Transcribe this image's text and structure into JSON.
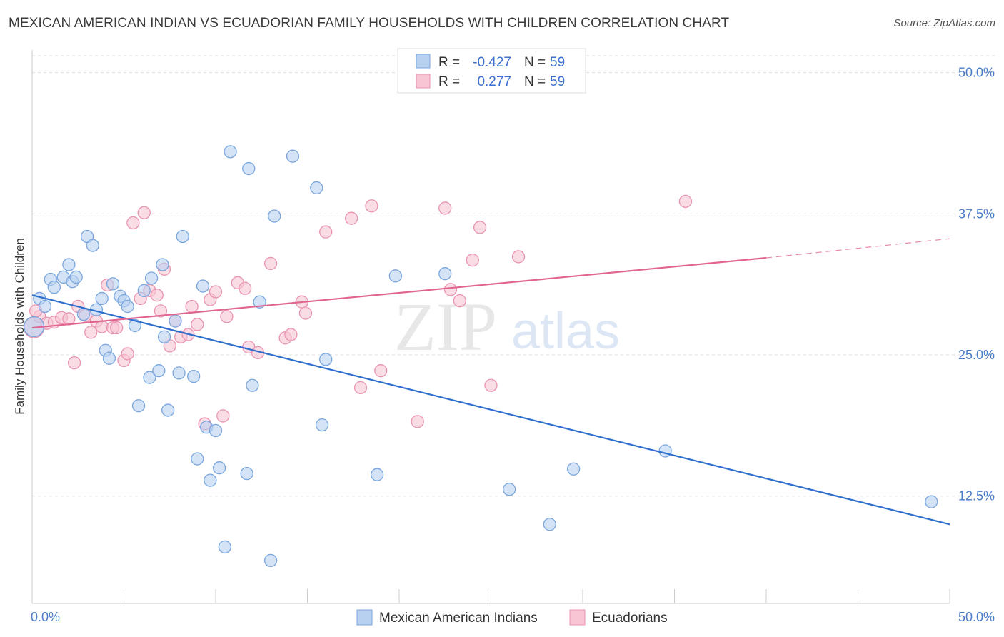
{
  "title": "MEXICAN AMERICAN INDIAN VS ECUADORIAN FAMILY HOUSEHOLDS WITH CHILDREN CORRELATION CHART",
  "source": "Source: ZipAtlas.com",
  "watermark": {
    "zip": "ZIP",
    "atlas": "atlas"
  },
  "colors": {
    "blue_fill": "#b8d1f0",
    "blue_stroke": "#7aa6de",
    "blue_line": "#2f6fce",
    "pink_fill": "#f7c5d4",
    "pink_stroke": "#e994b0",
    "pink_line": "#e0668f",
    "tick_label": "#4a7cc7",
    "grid": "#dddddd"
  },
  "legend": {
    "rows": [
      {
        "r_label": "R =",
        "r_value": "-0.427",
        "n_label": "N =",
        "n_value": "59",
        "series": "blue"
      },
      {
        "r_label": "R =",
        "r_value": "0.277",
        "n_label": "N =",
        "n_value": "59",
        "series": "pink"
      }
    ]
  },
  "bottom_legend": [
    {
      "label": "Mexican American Indians",
      "series": "blue"
    },
    {
      "label": "Ecuadorians",
      "series": "pink"
    }
  ],
  "chart_data": {
    "type": "scatter",
    "title": "MEXICAN AMERICAN INDIAN VS ECUADORIAN FAMILY HOUSEHOLDS WITH CHILDREN CORRELATION CHART",
    "xlabel": "",
    "ylabel": "Family Households with Children",
    "xlim": [
      0,
      50
    ],
    "ylim": [
      3,
      52
    ],
    "x_tick_labels": [
      {
        "value": 0,
        "label": "0.0%"
      },
      {
        "value": 50,
        "label": "50.0%"
      }
    ],
    "y_tick_labels": [
      {
        "value": 12.5,
        "label": "12.5%"
      },
      {
        "value": 25.0,
        "label": "25.0%"
      },
      {
        "value": 37.5,
        "label": "37.5%"
      },
      {
        "value": 50.0,
        "label": "50.0%"
      }
    ],
    "gridlines_y": [
      12.5,
      25.0,
      37.5,
      50.0
    ],
    "legend_placement": "top-center",
    "series": [
      {
        "name": "Mexican American Indians",
        "color": "blue",
        "trend": {
          "x": [
            0,
            50
          ],
          "y": [
            30.3,
            10.0
          ],
          "dashed_from": null
        },
        "points": [
          [
            0.1,
            27.5
          ],
          [
            0.4,
            30.0
          ],
          [
            0.7,
            29.3
          ],
          [
            1.0,
            31.7
          ],
          [
            1.2,
            31.0
          ],
          [
            1.7,
            31.9
          ],
          [
            2.0,
            33.0
          ],
          [
            2.2,
            31.5
          ],
          [
            2.4,
            31.9
          ],
          [
            2.8,
            28.6
          ],
          [
            3.0,
            35.5
          ],
          [
            3.3,
            34.7
          ],
          [
            3.5,
            29.0
          ],
          [
            3.8,
            30.0
          ],
          [
            4.0,
            25.4
          ],
          [
            4.2,
            24.7
          ],
          [
            4.4,
            31.3
          ],
          [
            4.8,
            30.2
          ],
          [
            5.0,
            29.8
          ],
          [
            5.2,
            29.3
          ],
          [
            5.6,
            27.6
          ],
          [
            5.8,
            20.5
          ],
          [
            6.1,
            30.7
          ],
          [
            6.4,
            23.0
          ],
          [
            6.5,
            31.8
          ],
          [
            6.9,
            23.6
          ],
          [
            7.1,
            33.0
          ],
          [
            7.2,
            26.6
          ],
          [
            7.4,
            20.1
          ],
          [
            7.8,
            28.0
          ],
          [
            8.0,
            23.4
          ],
          [
            8.2,
            35.5
          ],
          [
            8.8,
            23.1
          ],
          [
            9.0,
            15.8
          ],
          [
            9.3,
            31.1
          ],
          [
            9.5,
            18.6
          ],
          [
            9.7,
            13.9
          ],
          [
            10.0,
            18.3
          ],
          [
            10.2,
            15.0
          ],
          [
            10.5,
            8.0
          ],
          [
            10.8,
            43.0
          ],
          [
            11.7,
            14.5
          ],
          [
            11.8,
            41.5
          ],
          [
            12.0,
            22.3
          ],
          [
            12.4,
            29.7
          ],
          [
            13.0,
            6.8
          ],
          [
            13.2,
            37.3
          ],
          [
            14.2,
            42.6
          ],
          [
            15.5,
            39.8
          ],
          [
            15.8,
            18.8
          ],
          [
            16.0,
            24.6
          ],
          [
            18.8,
            14.4
          ],
          [
            19.8,
            32.0
          ],
          [
            22.5,
            32.2
          ],
          [
            26.0,
            13.1
          ],
          [
            28.2,
            10.0
          ],
          [
            29.5,
            14.9
          ],
          [
            34.5,
            16.5
          ],
          [
            49.0,
            12.0
          ]
        ]
      },
      {
        "name": "Ecuadorians",
        "color": "pink",
        "trend": {
          "x": [
            0,
            40,
            50
          ],
          "y": [
            27.4,
            33.6,
            35.3
          ],
          "dashed_from": 40
        },
        "points": [
          [
            0.1,
            27.4
          ],
          [
            0.4,
            28.4
          ],
          [
            0.8,
            27.8
          ],
          [
            1.2,
            27.9
          ],
          [
            1.6,
            28.3
          ],
          [
            2.0,
            28.2
          ],
          [
            2.3,
            24.3
          ],
          [
            2.5,
            29.3
          ],
          [
            2.9,
            28.5
          ],
          [
            3.2,
            27.0
          ],
          [
            3.5,
            28.0
          ],
          [
            3.8,
            27.5
          ],
          [
            4.1,
            31.2
          ],
          [
            4.4,
            27.4
          ],
          [
            4.6,
            27.4
          ],
          [
            5.0,
            24.5
          ],
          [
            5.2,
            25.1
          ],
          [
            5.5,
            36.7
          ],
          [
            5.9,
            30.0
          ],
          [
            6.1,
            37.6
          ],
          [
            6.4,
            30.7
          ],
          [
            6.8,
            30.3
          ],
          [
            7.0,
            28.9
          ],
          [
            7.2,
            32.6
          ],
          [
            7.5,
            25.8
          ],
          [
            7.8,
            28.0
          ],
          [
            8.1,
            26.6
          ],
          [
            8.5,
            26.8
          ],
          [
            8.7,
            29.3
          ],
          [
            9.0,
            27.7
          ],
          [
            9.4,
            18.9
          ],
          [
            9.7,
            29.9
          ],
          [
            10.0,
            30.6
          ],
          [
            10.4,
            19.6
          ],
          [
            10.6,
            28.4
          ],
          [
            11.2,
            31.4
          ],
          [
            11.6,
            30.9
          ],
          [
            11.8,
            25.7
          ],
          [
            12.3,
            25.2
          ],
          [
            13.0,
            33.1
          ],
          [
            13.8,
            26.5
          ],
          [
            14.1,
            26.8
          ],
          [
            14.7,
            29.7
          ],
          [
            14.9,
            28.7
          ],
          [
            16.0,
            35.9
          ],
          [
            17.4,
            37.1
          ],
          [
            17.9,
            22.1
          ],
          [
            18.5,
            38.2
          ],
          [
            19.0,
            23.6
          ],
          [
            21.0,
            19.1
          ],
          [
            22.5,
            38.0
          ],
          [
            22.8,
            30.8
          ],
          [
            23.3,
            29.8
          ],
          [
            24.0,
            33.4
          ],
          [
            24.4,
            36.3
          ],
          [
            25.0,
            22.3
          ],
          [
            26.5,
            33.7
          ],
          [
            35.6,
            38.6
          ],
          [
            0.2,
            28.9
          ]
        ]
      }
    ]
  }
}
